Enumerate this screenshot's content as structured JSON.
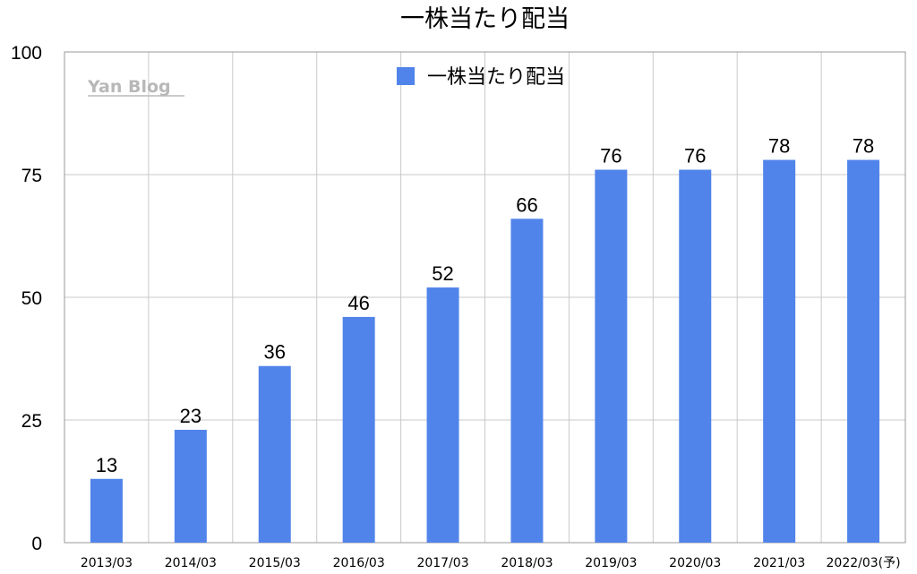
{
  "chart_data": {
    "type": "bar",
    "title": "一株当たり配当",
    "watermark": "Yan Blog",
    "categories": [
      "2013/03",
      "2014/03",
      "2015/03",
      "2016/03",
      "2017/03",
      "2018/03",
      "2019/03",
      "2020/03",
      "2021/03",
      "2022/03(予)"
    ],
    "series": [
      {
        "name": "一株当たり配当",
        "values": [
          13,
          23,
          36,
          46,
          52,
          66,
          76,
          76,
          78,
          78
        ]
      }
    ],
    "ylim": [
      0,
      100
    ],
    "yticks": [
      0,
      25,
      50,
      75,
      100
    ],
    "legend_position": "top-center",
    "grid": true,
    "colors": {
      "bar": "#5184ea",
      "grid": "#c9c9c9",
      "axis": "#999999",
      "watermark": "#b8b8b8",
      "text": "#000000"
    }
  }
}
